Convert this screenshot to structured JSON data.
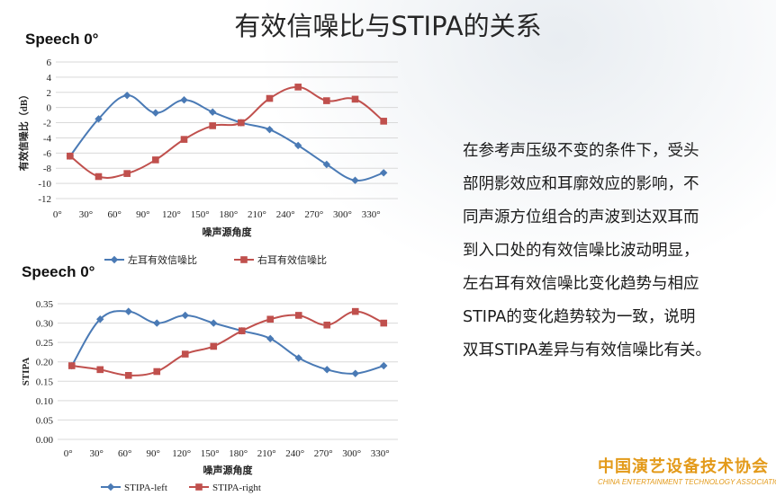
{
  "slide": {
    "title": "有效信噪比与STIPA的关系",
    "description_lines": [
      "在参考声压级不变的条件下，受头",
      "部阴影效应和耳廓效应的影响，不",
      "同声源方位组合的声波到达双耳而",
      "到入口处的有效信噪比波动明显，",
      "左右耳有效信噪比变化趋势与相应",
      "STIPA的变化趋势较为一致，说明",
      "双耳STIPA差异与有效信噪比有关。"
    ],
    "logo_cn": "中国演艺设备技术协会",
    "logo_en": "CHINA ENTERTAINMENT TECHNOLOGY ASSOCIATION"
  },
  "colors": {
    "left": "#4a7ab5",
    "right": "#c0504d",
    "grid": "#d9d9d9",
    "accent_logo": "#e39a1a"
  },
  "chart_data": [
    {
      "type": "line",
      "label": "Speech 0°",
      "xlabel": "噪声源角度",
      "ylabel": "有效信噪比（dB）",
      "categories": [
        "0°",
        "30°",
        "60°",
        "90°",
        "120°",
        "150°",
        "180°",
        "210°",
        "240°",
        "270°",
        "300°",
        "330°"
      ],
      "ylim": [
        -12,
        6
      ],
      "yticks": [
        "6",
        "4",
        "2",
        "0",
        "-2",
        "-4",
        "-6",
        "-8",
        "-10",
        "-12"
      ],
      "grid": true,
      "legend": "bottom",
      "marker_shapes": [
        "diamond",
        "square"
      ],
      "series": [
        {
          "name": "左耳有效信噪比",
          "values": [
            -6.4,
            -1.5,
            1.6,
            -0.7,
            1.0,
            -0.6,
            -2.0,
            -2.9,
            -5.0,
            -7.5,
            -9.6,
            -8.6
          ]
        },
        {
          "name": "右耳有效信噪比",
          "values": [
            -6.4,
            -9.1,
            -8.7,
            -6.9,
            -4.2,
            -2.4,
            -2.0,
            1.2,
            2.7,
            0.9,
            1.1,
            -1.8
          ]
        }
      ]
    },
    {
      "type": "line",
      "label": "Speech 0°",
      "xlabel": "噪声源角度",
      "ylabel": "STIPA",
      "categories": [
        "0°",
        "30°",
        "60°",
        "90°",
        "120°",
        "150°",
        "180°",
        "210°",
        "240°",
        "270°",
        "300°",
        "330°"
      ],
      "ylim": [
        0,
        0.35
      ],
      "yticks": [
        "0.35",
        "0.30",
        "0.25",
        "0.20",
        "0.15",
        "0.10",
        "0.05",
        "0.00"
      ],
      "grid": true,
      "legend": "bottom",
      "marker_shapes": [
        "diamond",
        "square"
      ],
      "series": [
        {
          "name": "STIPA-left",
          "values": [
            0.19,
            0.31,
            0.33,
            0.3,
            0.32,
            0.3,
            0.28,
            0.26,
            0.21,
            0.18,
            0.17,
            0.19
          ]
        },
        {
          "name": "STIPA-right",
          "values": [
            0.19,
            0.18,
            0.165,
            0.175,
            0.22,
            0.24,
            0.28,
            0.31,
            0.32,
            0.295,
            0.33,
            0.3
          ]
        }
      ]
    }
  ]
}
